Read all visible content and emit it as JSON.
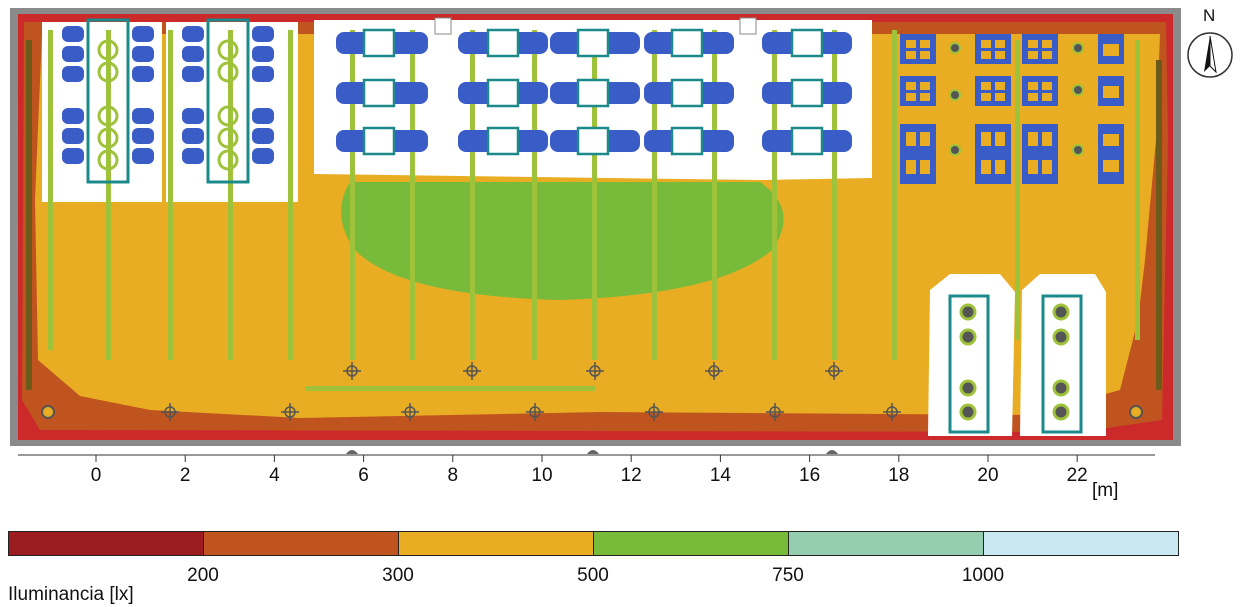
{
  "compass": {
    "label": "N",
    "icon": "north-arrow-icon"
  },
  "axis": {
    "ticks": [
      "0",
      "2",
      "4",
      "6",
      "8",
      "10",
      "12",
      "14",
      "16",
      "18",
      "20",
      "22"
    ],
    "unit": "[m]"
  },
  "legend": {
    "title": "Iluminancia [lx]",
    "labels": [
      "200",
      "300",
      "500",
      "750",
      "1000"
    ],
    "colors": [
      "#9b1b1e",
      "#c0541f",
      "#e8ad22",
      "#78ba3a",
      "#95ceae",
      "#c9e8f2"
    ]
  },
  "map_colors": {
    "frame": "#8a8a8a",
    "wall_outer": "#cc2a2a",
    "edge_zone": "#c0541f",
    "main_zone": "#e8ad22",
    "center_zone": "#78ba3a",
    "bright_zone": "#ffffff",
    "desk": "#3a5cc6",
    "furniture_outline": "#1d8a8a",
    "light_strip": "#9ec23a"
  }
}
